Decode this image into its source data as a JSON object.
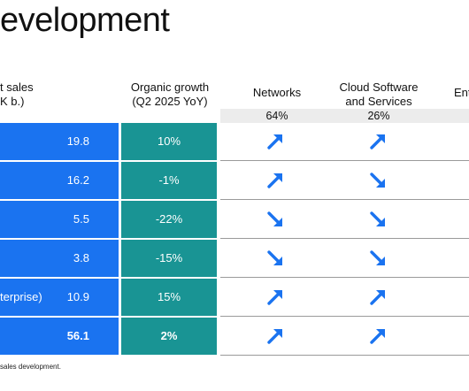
{
  "title": "evelopment",
  "headers": {
    "sales_line1": "t sales",
    "sales_line2": "K b.)",
    "growth_line1": "Organic growth",
    "growth_line2": "(Q2 2025 YoY)",
    "networks": "Networks",
    "cloud_line1": "Cloud Software",
    "cloud_line2": "and Services",
    "enterprise": "Ent"
  },
  "shares": {
    "networks": "64%",
    "cloud": "26%"
  },
  "rows": [
    {
      "label": "",
      "sales": "19.8",
      "growth": "10%",
      "networks": "up",
      "cloud": "up"
    },
    {
      "label": "",
      "sales": "16.2",
      "growth": "-1%",
      "networks": "up",
      "cloud": "down"
    },
    {
      "label": "",
      "sales": "5.5",
      "growth": "-22%",
      "networks": "down",
      "cloud": "down"
    },
    {
      "label": "",
      "sales": "3.8",
      "growth": "-15%",
      "networks": "down",
      "cloud": "down"
    },
    {
      "label": "terprise)",
      "sales": "10.9",
      "growth": "15%",
      "networks": "up",
      "cloud": "up"
    },
    {
      "label": "",
      "sales": "56.1",
      "growth": "2%",
      "networks": "up",
      "cloud": "up"
    }
  ],
  "footnote": "sales development.",
  "colors": {
    "sales_cell": "#1a73f0",
    "growth_cell": "#199494",
    "arrow": "#1a73f0",
    "band": "#ececec"
  },
  "icons": {
    "up": "arrow-up-right-icon",
    "down": "arrow-down-right-icon"
  }
}
